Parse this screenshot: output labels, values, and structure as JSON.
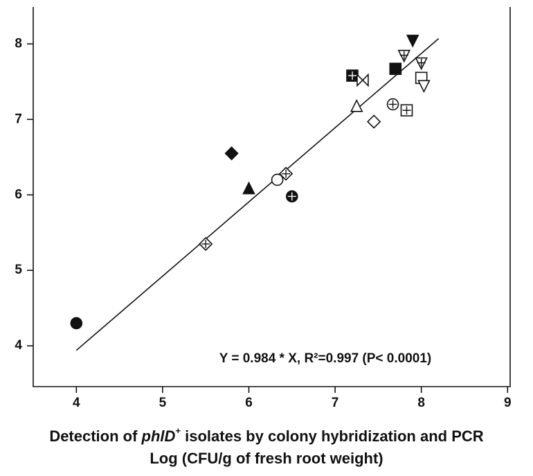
{
  "chart_data": {
    "type": "scatter",
    "annotation": "Y = 0.984 * X, R²=0.997 (P< 0.0001)",
    "x_label": [
      "Detection of ",
      "phlD",
      "+",
      " isolates by colony hybridization and PCR"
    ],
    "x_label_line2": "Log (CFU/g of fresh root weight)",
    "xlim": [
      3.5,
      9.03
    ],
    "xticks": [
      4,
      5,
      6,
      7,
      8,
      9
    ],
    "ylim": [
      3.46,
      8.49
    ],
    "yticks": [
      4,
      5,
      6,
      7,
      8
    ],
    "grid": false,
    "color": "#111111",
    "points": [
      {
        "x": 4.0,
        "y": 4.3,
        "marker": "circle-filled"
      },
      {
        "x": 5.5,
        "y": 5.35,
        "marker": "diamond-cross"
      },
      {
        "x": 5.8,
        "y": 6.55,
        "marker": "diamond-filled"
      },
      {
        "x": 6.0,
        "y": 6.08,
        "marker": "triangle-filled"
      },
      {
        "x": 6.33,
        "y": 6.2,
        "marker": "circle"
      },
      {
        "x": 6.43,
        "y": 6.28,
        "marker": "diamond-hatched"
      },
      {
        "x": 6.5,
        "y": 5.98,
        "marker": "circle-filled-cross"
      },
      {
        "x": 7.25,
        "y": 7.17,
        "marker": "triangle"
      },
      {
        "x": 7.45,
        "y": 6.97,
        "marker": "diamond"
      },
      {
        "x": 7.67,
        "y": 7.2,
        "marker": "circle-cross"
      },
      {
        "x": 7.83,
        "y": 7.12,
        "marker": "square-cross"
      },
      {
        "x": 7.2,
        "y": 7.58,
        "marker": "square-hatched-filled"
      },
      {
        "x": 7.32,
        "y": 7.52,
        "marker": "bowtie"
      },
      {
        "x": 7.7,
        "y": 7.67,
        "marker": "square-filled"
      },
      {
        "x": 7.8,
        "y": 7.85,
        "marker": "triangledown-hatched"
      },
      {
        "x": 7.9,
        "y": 8.05,
        "marker": "triangledown-filled"
      },
      {
        "x": 8.0,
        "y": 7.75,
        "marker": "triangledown-hatched"
      },
      {
        "x": 8.0,
        "y": 7.55,
        "marker": "square"
      },
      {
        "x": 8.03,
        "y": 7.45,
        "marker": "triangledown"
      }
    ],
    "fit_line": {
      "x": [
        4.0,
        8.2
      ],
      "y": [
        3.94,
        8.07
      ]
    }
  }
}
